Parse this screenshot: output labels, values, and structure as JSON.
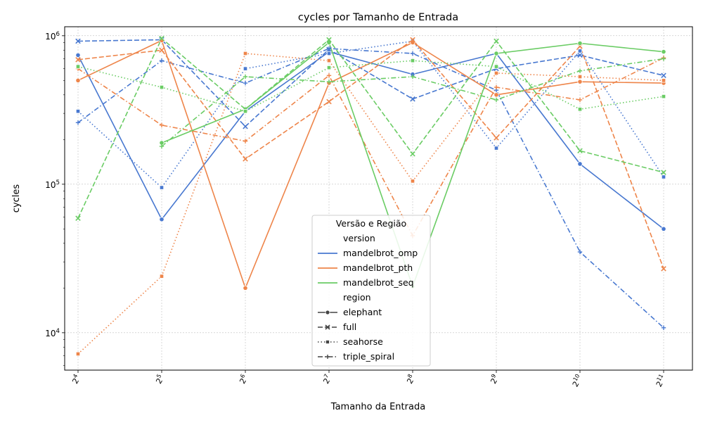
{
  "colors": {
    "mandelbrot_omp": "#4878d0",
    "mandelbrot_pth": "#ee854a",
    "mandelbrot_seq": "#6acc64",
    "grid": "#b0b0b0",
    "axis": "#000000"
  },
  "chart_data": {
    "type": "line",
    "title": "cycles por Tamanho de Entrada",
    "xlabel": "Tamanho da Entrada",
    "ylabel": "cycles",
    "yscale": "log",
    "ylim": [
      5600,
      1150000
    ],
    "grid": true,
    "legend_position": "lower-center",
    "categories": [
      "2^4",
      "2^5",
      "2^6",
      "2^7",
      "2^8",
      "2^9",
      "2^10",
      "2^11"
    ],
    "x_tick_labels": [
      {
        "base": "2",
        "exp": "4"
      },
      {
        "base": "2",
        "exp": "5"
      },
      {
        "base": "2",
        "exp": "6"
      },
      {
        "base": "2",
        "exp": "7"
      },
      {
        "base": "2",
        "exp": "8"
      },
      {
        "base": "2",
        "exp": "9"
      },
      {
        "base": "2",
        "exp": "10"
      },
      {
        "base": "2",
        "exp": "11"
      }
    ],
    "y_tick_labels": [
      {
        "value": 10000,
        "base": "10",
        "exp": "4"
      },
      {
        "value": 100000,
        "base": "10",
        "exp": "5"
      },
      {
        "value": 1000000,
        "base": "10",
        "exp": "6"
      }
    ],
    "legend": {
      "title": "Versão e Região",
      "hue_header": "version",
      "style_header": "region",
      "versions": [
        "mandelbrot_omp",
        "mandelbrot_pth",
        "mandelbrot_seq"
      ],
      "regions": [
        "elephant",
        "full",
        "seahorse",
        "triple_spiral"
      ]
    },
    "region_styles": {
      "elephant": {
        "dash": "solid",
        "marker": "circle"
      },
      "full": {
        "dash": "dashed",
        "marker": "x"
      },
      "seahorse": {
        "dash": "dotted",
        "marker": "square"
      },
      "triple_spiral": {
        "dash": "dashdot",
        "marker": "plus"
      }
    },
    "series": [
      {
        "version": "mandelbrot_omp",
        "region": "elephant",
        "values": [
          740000,
          58000,
          310000,
          780000,
          550000,
          760000,
          137000,
          50000
        ]
      },
      {
        "version": "mandelbrot_omp",
        "region": "full",
        "values": [
          920000,
          940000,
          245000,
          810000,
          375000,
          600000,
          740000,
          540000
        ]
      },
      {
        "version": "mandelbrot_omp",
        "region": "seahorse",
        "values": [
          310000,
          95000,
          600000,
          760000,
          920000,
          175000,
          790000,
          112000
        ]
      },
      {
        "version": "mandelbrot_omp",
        "region": "triple_spiral",
        "values": [
          260000,
          680000,
          480000,
          820000,
          760000,
          430000,
          35000,
          10800
        ]
      },
      {
        "version": "mandelbrot_pth",
        "region": "elephant",
        "values": [
          500000,
          930000,
          20000,
          480000,
          900000,
          400000,
          490000,
          480000
        ]
      },
      {
        "version": "mandelbrot_pth",
        "region": "full",
        "values": [
          690000,
          800000,
          148000,
          360000,
          940000,
          205000,
          850000,
          27000
        ]
      },
      {
        "version": "mandelbrot_pth",
        "region": "seahorse",
        "values": [
          7200,
          24000,
          760000,
          680000,
          105000,
          560000,
          530000,
          500000
        ]
      },
      {
        "version": "mandelbrot_pth",
        "region": "triple_spiral",
        "values": [
          600000,
          250000,
          195000,
          540000,
          45000,
          450000,
          370000,
          710000
        ]
      },
      {
        "version": "mandelbrot_seq",
        "region": "elephant",
        "values": [
          null,
          190000,
          320000,
          900000,
          20500,
          760000,
          890000,
          780000
        ]
      },
      {
        "version": "mandelbrot_seq",
        "region": "full",
        "values": [
          59000,
          960000,
          320000,
          940000,
          160000,
          920000,
          168000,
          120000
        ]
      },
      {
        "version": "mandelbrot_seq",
        "region": "seahorse",
        "values": [
          620000,
          450000,
          310000,
          610000,
          680000,
          620000,
          320000,
          390000
        ]
      },
      {
        "version": "mandelbrot_seq",
        "region": "triple_spiral",
        "values": [
          null,
          180000,
          530000,
          490000,
          530000,
          370000,
          580000,
          700000
        ]
      }
    ]
  }
}
